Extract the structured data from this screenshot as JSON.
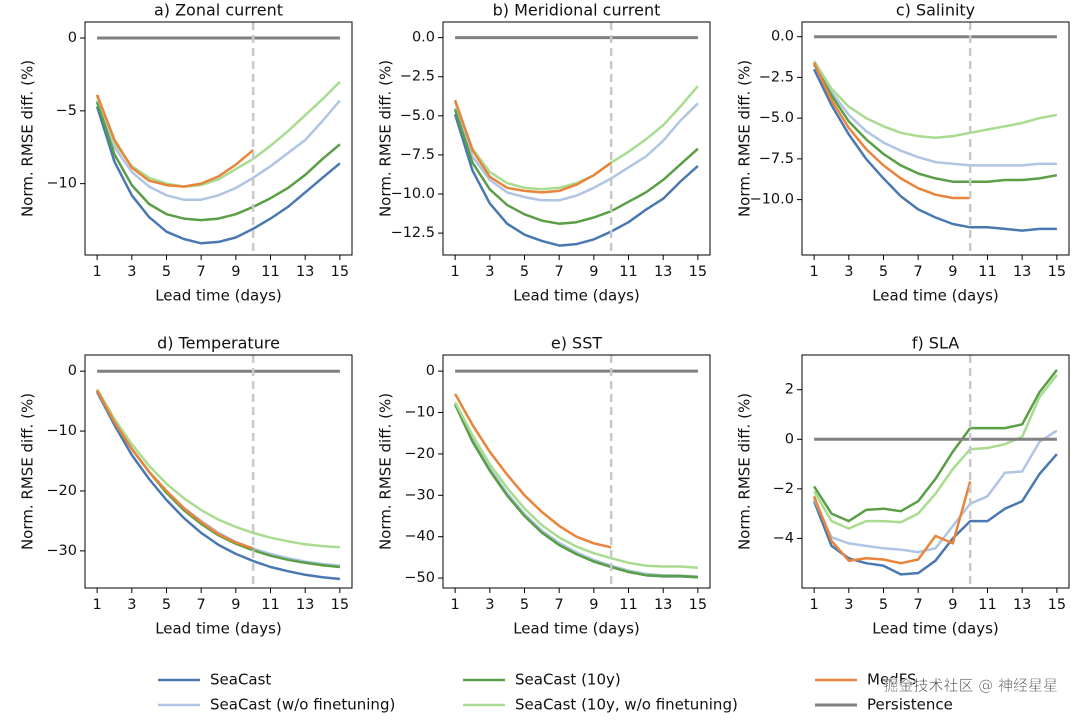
{
  "chart_data": [
    {
      "type": "line",
      "title": "a) Zonal current",
      "xlabel": "Lead time (days)",
      "ylabel": "Norm. RMSE diff. (%)",
      "x": [
        1,
        2,
        3,
        4,
        5,
        6,
        7,
        8,
        9,
        10,
        11,
        12,
        13,
        14,
        15
      ],
      "xlim": [
        0.3,
        15.7
      ],
      "xticks": [
        1,
        3,
        5,
        7,
        9,
        11,
        13,
        15
      ],
      "ylim": [
        -14.9,
        1.1
      ],
      "yticks": [
        0,
        {
          "value": -5,
          "label": "−5"
        },
        {
          "value": -10,
          "label": "−10"
        }
      ],
      "vline": 10,
      "series": [
        {
          "name": "SeaCast",
          "color": "#4a78b0",
          "values": [
            -4.7,
            -8.5,
            -10.8,
            -12.3,
            -13.3,
            -13.8,
            -14.1,
            -14.0,
            -13.7,
            -13.1,
            -12.4,
            -11.6,
            -10.6,
            -9.6,
            -8.6
          ]
        },
        {
          "name": "SeaCast (w/o finetuning)",
          "color": "#b0c4e4",
          "values": [
            -4.3,
            -7.5,
            -9.2,
            -10.2,
            -10.8,
            -11.1,
            -11.1,
            -10.8,
            -10.3,
            -9.6,
            -8.8,
            -7.9,
            -7.0,
            -5.7,
            -4.3
          ]
        },
        {
          "name": "SeaCast (10y)",
          "color": "#5a9e45",
          "values": [
            -4.4,
            -8.0,
            -10.1,
            -11.4,
            -12.1,
            -12.4,
            -12.5,
            -12.4,
            -12.1,
            -11.6,
            -11.0,
            -10.3,
            -9.4,
            -8.3,
            -7.3
          ]
        },
        {
          "name": "SeaCast (10y, w/o finetuning)",
          "color": "#a8dc90",
          "values": [
            -4.0,
            -7.2,
            -8.8,
            -9.6,
            -10.0,
            -10.2,
            -10.1,
            -9.7,
            -9.0,
            -8.3,
            -7.4,
            -6.4,
            -5.3,
            -4.2,
            -3.0
          ]
        },
        {
          "name": "MedFS",
          "color": "#e8843c",
          "values": [
            -3.9,
            -7.0,
            -8.9,
            -9.8,
            -10.1,
            -10.2,
            -10.0,
            -9.5,
            -8.7,
            -7.7,
            null,
            null,
            null,
            null,
            null
          ]
        },
        {
          "name": "Persistence",
          "color": "#808080",
          "values": [
            0,
            0,
            0,
            0,
            0,
            0,
            0,
            0,
            0,
            0,
            0,
            0,
            0,
            0,
            0
          ]
        }
      ]
    },
    {
      "type": "line",
      "title": "b) Meridional current",
      "xlabel": "Lead time (days)",
      "ylabel": "Norm. RMSE diff. (%)",
      "x": [
        1,
        2,
        3,
        4,
        5,
        6,
        7,
        8,
        9,
        10,
        11,
        12,
        13,
        14,
        15
      ],
      "xlim": [
        0.3,
        15.7
      ],
      "xticks": [
        1,
        3,
        5,
        7,
        9,
        11,
        13,
        15
      ],
      "ylim": [
        -13.9,
        1.0
      ],
      "yticks": [
        {
          "value": 0,
          "label": "0.0"
        },
        {
          "value": -2.5,
          "label": "−2.5"
        },
        {
          "value": -5,
          "label": "−5.0"
        },
        {
          "value": -7.5,
          "label": "−7.5"
        },
        {
          "value": -10,
          "label": "−10.0"
        },
        {
          "value": -12.5,
          "label": "−12.5"
        }
      ],
      "vline": 10,
      "series": [
        {
          "color": "#4a78b0",
          "values": [
            -4.9,
            -8.5,
            -10.6,
            -11.9,
            -12.6,
            -13.0,
            -13.3,
            -13.2,
            -12.9,
            -12.4,
            -11.8,
            -11.0,
            -10.3,
            -9.2,
            -8.2
          ]
        },
        {
          "color": "#b0c4e4",
          "values": [
            -4.5,
            -7.6,
            -9.1,
            -9.9,
            -10.2,
            -10.4,
            -10.4,
            -10.1,
            -9.6,
            -9.0,
            -8.3,
            -7.6,
            -6.6,
            -5.3,
            -4.2
          ]
        },
        {
          "color": "#5a9e45",
          "values": [
            -4.6,
            -8.0,
            -9.7,
            -10.7,
            -11.3,
            -11.7,
            -11.9,
            -11.8,
            -11.5,
            -11.1,
            -10.5,
            -9.9,
            -9.1,
            -8.1,
            -7.1
          ]
        },
        {
          "color": "#a8dc90",
          "values": [
            -4.1,
            -7.1,
            -8.6,
            -9.3,
            -9.6,
            -9.7,
            -9.6,
            -9.3,
            -8.8,
            -8.0,
            -7.3,
            -6.5,
            -5.6,
            -4.4,
            -3.1
          ]
        },
        {
          "color": "#e8843c",
          "values": [
            -4.0,
            -7.2,
            -8.9,
            -9.6,
            -9.8,
            -9.9,
            -9.8,
            -9.4,
            -8.8,
            -8.0,
            null,
            null,
            null,
            null,
            null
          ]
        },
        {
          "color": "#808080",
          "values": [
            0,
            0,
            0,
            0,
            0,
            0,
            0,
            0,
            0,
            0,
            0,
            0,
            0,
            0,
            0
          ]
        }
      ]
    },
    {
      "type": "line",
      "title": "c) Salinity",
      "xlabel": "Lead time (days)",
      "ylabel": "Norm. RMSE diff. (%)",
      "x": [
        1,
        2,
        3,
        4,
        5,
        6,
        7,
        8,
        9,
        10,
        11,
        12,
        13,
        14,
        15
      ],
      "xlim": [
        0.3,
        15.7
      ],
      "xticks": [
        1,
        3,
        5,
        7,
        9,
        11,
        13,
        15
      ],
      "ylim": [
        -13.4,
        0.9
      ],
      "yticks": [
        {
          "value": 0,
          "label": "0.0"
        },
        {
          "value": -2.5,
          "label": "−2.5"
        },
        {
          "value": -5,
          "label": "−5.0"
        },
        {
          "value": -7.5,
          "label": "−7.5"
        },
        {
          "value": -10,
          "label": "−10.0"
        }
      ],
      "vline": 10,
      "series": [
        {
          "color": "#4a78b0",
          "values": [
            -2.0,
            -4.2,
            -6.0,
            -7.5,
            -8.7,
            -9.8,
            -10.6,
            -11.1,
            -11.5,
            -11.7,
            -11.7,
            -11.8,
            -11.9,
            -11.8,
            -11.8
          ]
        },
        {
          "color": "#b0c4e4",
          "values": [
            -1.6,
            -3.4,
            -4.8,
            -5.8,
            -6.5,
            -7.0,
            -7.4,
            -7.7,
            -7.8,
            -7.9,
            -7.9,
            -7.9,
            -7.9,
            -7.8,
            -7.8
          ]
        },
        {
          "color": "#5a9e45",
          "values": [
            -1.7,
            -3.6,
            -5.2,
            -6.3,
            -7.2,
            -7.9,
            -8.4,
            -8.7,
            -8.9,
            -8.9,
            -8.9,
            -8.8,
            -8.8,
            -8.7,
            -8.5
          ]
        },
        {
          "color": "#a8dc90",
          "values": [
            -1.5,
            -3.2,
            -4.3,
            -5.0,
            -5.5,
            -5.9,
            -6.1,
            -6.2,
            -6.1,
            -5.9,
            -5.7,
            -5.5,
            -5.3,
            -5.0,
            -4.8
          ]
        },
        {
          "color": "#e8843c",
          "values": [
            -1.6,
            -3.9,
            -5.6,
            -6.9,
            -7.9,
            -8.7,
            -9.3,
            -9.7,
            -9.9,
            -9.9,
            null,
            null,
            null,
            null,
            null
          ]
        },
        {
          "color": "#808080",
          "values": [
            0,
            0,
            0,
            0,
            0,
            0,
            0,
            0,
            0,
            0,
            0,
            0,
            0,
            0,
            0
          ]
        }
      ]
    },
    {
      "type": "line",
      "title": "d) Temperature",
      "xlabel": "Lead time (days)",
      "ylabel": "Norm. RMSE diff. (%)",
      "x": [
        1,
        2,
        3,
        4,
        5,
        6,
        7,
        8,
        9,
        10,
        11,
        12,
        13,
        14,
        15
      ],
      "xlim": [
        0.3,
        15.7
      ],
      "xticks": [
        1,
        3,
        5,
        7,
        9,
        11,
        13,
        15
      ],
      "ylim": [
        -36.2,
        2.7
      ],
      "yticks": [
        0,
        {
          "value": -10,
          "label": "−10"
        },
        {
          "value": -20,
          "label": "−20"
        },
        {
          "value": -30,
          "label": "−30"
        }
      ],
      "vline": 10,
      "series": [
        {
          "color": "#4a78b0",
          "values": [
            -3.5,
            -9,
            -14,
            -18,
            -21.5,
            -24.5,
            -27,
            -29,
            -30.5,
            -31.7,
            -32.7,
            -33.4,
            -34,
            -34.4,
            -34.7
          ]
        },
        {
          "color": "#b0c4e4",
          "values": [
            -3.3,
            -8.5,
            -13,
            -16.8,
            -20,
            -22.8,
            -25,
            -27,
            -28.5,
            -29.6,
            -30.5,
            -31.2,
            -31.8,
            -32.2,
            -32.5
          ]
        },
        {
          "color": "#5a9e45",
          "values": [
            -3.3,
            -8.5,
            -13,
            -16.8,
            -20.3,
            -23.2,
            -25.5,
            -27.4,
            -28.8,
            -29.9,
            -30.8,
            -31.5,
            -32,
            -32.4,
            -32.7
          ]
        },
        {
          "color": "#a8dc90",
          "values": [
            -3.0,
            -8,
            -12.2,
            -15.8,
            -18.8,
            -21.2,
            -23.2,
            -24.8,
            -26.0,
            -27.0,
            -27.8,
            -28.4,
            -28.9,
            -29.2,
            -29.4
          ]
        },
        {
          "color": "#e8843c",
          "values": [
            -3.2,
            -8.5,
            -13,
            -16.8,
            -20,
            -22.9,
            -25.2,
            -27.2,
            -28.6,
            -29.6,
            null,
            null,
            null,
            null,
            null
          ]
        },
        {
          "color": "#808080",
          "values": [
            0,
            0,
            0,
            0,
            0,
            0,
            0,
            0,
            0,
            0,
            0,
            0,
            0,
            0,
            0
          ]
        }
      ]
    },
    {
      "type": "line",
      "title": "e) SST",
      "xlabel": "Lead time (days)",
      "ylabel": "Norm. RMSE diff. (%)",
      "x": [
        1,
        2,
        3,
        4,
        5,
        6,
        7,
        8,
        9,
        10,
        11,
        12,
        13,
        14,
        15
      ],
      "xlim": [
        0.3,
        15.7
      ],
      "xticks": [
        1,
        3,
        5,
        7,
        9,
        11,
        13,
        15
      ],
      "ylim": [
        -52.4,
        3.9
      ],
      "yticks": [
        0,
        {
          "value": -10,
          "label": "−10"
        },
        {
          "value": -20,
          "label": "−20"
        },
        {
          "value": -30,
          "label": "−30"
        },
        {
          "value": -40,
          "label": "−40"
        },
        {
          "value": -50,
          "label": "−50"
        }
      ],
      "vline": 10,
      "series": [
        {
          "color": "#4a78b0",
          "values": [
            -8,
            -17,
            -24,
            -30,
            -35,
            -39,
            -42,
            -44.2,
            -46,
            -47.3,
            -48.5,
            -49.3,
            -49.6,
            -49.6,
            -49.8
          ]
        },
        {
          "color": "#b0c4e4",
          "values": [
            -8,
            -16.5,
            -23.5,
            -29.5,
            -34.5,
            -38.5,
            -41.5,
            -43.8,
            -45.6,
            -47,
            -48.2,
            -49,
            -49.3,
            -49.4,
            -49.6
          ]
        },
        {
          "color": "#5a9e45",
          "values": [
            -8,
            -17,
            -24,
            -30,
            -35,
            -39,
            -42,
            -44.2,
            -46,
            -47.3,
            -48.5,
            -49.3,
            -49.5,
            -49.5,
            -49.8
          ]
        },
        {
          "color": "#a8dc90",
          "values": [
            -7.5,
            -15.5,
            -22.5,
            -28.2,
            -33.2,
            -37.2,
            -40.2,
            -42.4,
            -44,
            -45.2,
            -46.3,
            -47,
            -47.2,
            -47.2,
            -47.5
          ]
        },
        {
          "color": "#e8843c",
          "values": [
            -5.5,
            -13,
            -19.5,
            -25,
            -30,
            -34,
            -37.4,
            -40,
            -41.6,
            -42.6,
            null,
            null,
            null,
            null,
            null
          ]
        },
        {
          "color": "#808080",
          "values": [
            0,
            0,
            0,
            0,
            0,
            0,
            0,
            0,
            0,
            0,
            0,
            0,
            0,
            0,
            0
          ]
        }
      ]
    },
    {
      "type": "line",
      "title": "f) SLA",
      "xlabel": "Lead time (days)",
      "ylabel": "Norm. RMSE diff. (%)",
      "x": [
        1,
        2,
        3,
        4,
        5,
        6,
        7,
        8,
        9,
        10,
        11,
        12,
        13,
        14,
        15
      ],
      "xlim": [
        0.3,
        15.7
      ],
      "xticks": [
        1,
        3,
        5,
        7,
        9,
        11,
        13,
        15
      ],
      "ylim": [
        -6.0,
        3.4
      ],
      "yticks": [
        2,
        0,
        {
          "value": -2,
          "label": "−2"
        },
        {
          "value": -4,
          "label": "−4"
        }
      ],
      "vline": 10,
      "series": [
        {
          "color": "#4a78b0",
          "values": [
            -2.5,
            -4.3,
            -4.8,
            -5.0,
            -5.1,
            -5.45,
            -5.4,
            -4.9,
            -4.0,
            -3.3,
            -3.3,
            -2.8,
            -2.5,
            -1.4,
            -0.6
          ]
        },
        {
          "color": "#b0c4e4",
          "values": [
            -2.4,
            -3.95,
            -4.2,
            -4.3,
            -4.4,
            -4.45,
            -4.55,
            -4.4,
            -3.5,
            -2.6,
            -2.3,
            -1.35,
            -1.3,
            -0.1,
            0.35
          ]
        },
        {
          "color": "#5a9e45",
          "values": [
            -1.9,
            -3.0,
            -3.3,
            -2.85,
            -2.8,
            -2.9,
            -2.5,
            -1.6,
            -0.5,
            0.45,
            0.45,
            0.45,
            0.6,
            1.9,
            2.8
          ]
        },
        {
          "color": "#a8dc90",
          "values": [
            -2.1,
            -3.3,
            -3.6,
            -3.3,
            -3.3,
            -3.35,
            -3.0,
            -2.2,
            -1.2,
            -0.4,
            -0.35,
            -0.2,
            0.1,
            1.7,
            2.6
          ]
        },
        {
          "color": "#e8843c",
          "values": [
            -2.3,
            -4.1,
            -4.9,
            -4.8,
            -4.85,
            -5.0,
            -4.85,
            -3.9,
            -4.2,
            -1.7,
            null,
            null,
            null,
            null,
            null
          ]
        },
        {
          "color": "#808080",
          "values": [
            0,
            0,
            0,
            0,
            0,
            0,
            0,
            0,
            0,
            0,
            0,
            0,
            0,
            0,
            0
          ]
        }
      ]
    }
  ],
  "watermark": "掘金技术社区 @ 神经星星"
}
